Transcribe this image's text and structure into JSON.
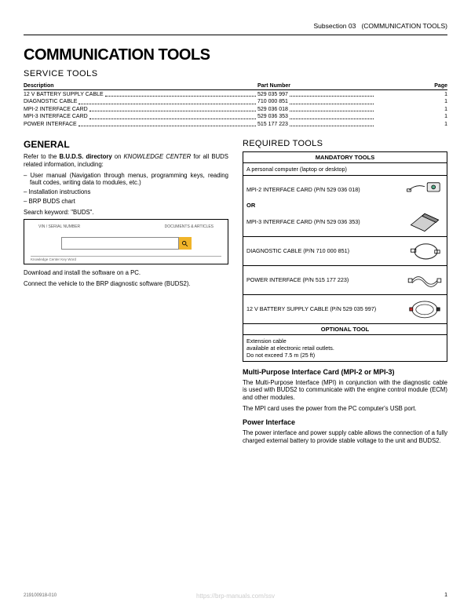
{
  "header": {
    "subsection": "Subsection 03",
    "title_paren": "(COMMUNICATION TOOLS)"
  },
  "h1": "COMMUNICATION TOOLS",
  "service_tools_heading": "SERVICE TOOLS",
  "table": {
    "headers": {
      "desc": "Description",
      "pn": "Part Number",
      "page": "Page"
    },
    "rows": [
      {
        "desc": "12 V BATTERY SUPPLY CABLE",
        "pn": "529 035 997",
        "page": "1"
      },
      {
        "desc": "DIAGNOSTIC CABLE",
        "pn": "710 000 851",
        "page": "1"
      },
      {
        "desc": "MPI-2 INTERFACE CARD",
        "pn": "529 036 018",
        "page": "1"
      },
      {
        "desc": "MPI-3 INTERFACE CARD",
        "pn": "529 036 353",
        "page": "1"
      },
      {
        "desc": "POWER INTERFACE",
        "pn": "515 177 223",
        "page": "1"
      }
    ]
  },
  "left": {
    "general_heading": "GENERAL",
    "intro_a": "Refer to the ",
    "intro_b": "B.U.D.S. directory",
    "intro_c": " on ",
    "intro_d": "KNOWLEDGE CENTER",
    "intro_e": " for all BUDS related information, including:",
    "bullets": [
      "User manual (Navigation through menus, programming keys, reading fault codes, writing data to modules, etc.)",
      "Installation instructions",
      "BRP BUDS chart"
    ],
    "search_line": "Search keyword:  \"BUDS\".",
    "sb_left": "VIN / SERIAL NUMBER",
    "sb_right": "DOCUMENTS & ARTICLES",
    "sb_caption": "Knowledge Center Key Word",
    "p_download": "Download and install the software on a PC.",
    "p_connect": "Connect the vehicle to the BRP diagnostic software (BUDS2)."
  },
  "right": {
    "required_heading": "REQUIRED TOOLS",
    "mandatory_header": "MANDATORY TOOLS",
    "row_pc": "A personal computer (laptop or desktop)",
    "row_mpi2": "MPI-2 INTERFACE CARD (P/N 529 036 018)",
    "or": "OR",
    "row_mpi3": "MPI-3 INTERFACE CARD (P/N 529 036 353)",
    "row_diag": "DIAGNOSTIC CABLE (P/N 710 000 851)",
    "row_power": "POWER INTERFACE (P/N 515 177 223)",
    "row_batt": "12 V BATTERY SUPPLY CABLE (P/N 529 035 997)",
    "optional_header": "OPTIONAL TOOL",
    "row_ext1": "Extension cable",
    "row_ext2": "available at electronic retail outlets.",
    "row_ext3": "Do not exceed 7.5 m (25 ft)",
    "h3_mpi": "Multi-Purpose Interface Card (MPI-2 or MPI-3)",
    "p_mpi1": "The Multi-Purpose Interface (MPI) in conjunction with the diagnostic cable is used with BUDS2 to communicate with the engine control module (ECM) and other modules.",
    "p_mpi2": "The MPI card uses the power from the PC computer's USB port.",
    "h3_power": "Power Interface",
    "p_power": "The power interface and power supply cable allows the connection of a fully charged external battery to provide stable voltage to the unit and BUDS2."
  },
  "footer": {
    "docnum": "219100918-010",
    "watermark": "https://brp-manuals.com/ssv",
    "page": "1"
  }
}
